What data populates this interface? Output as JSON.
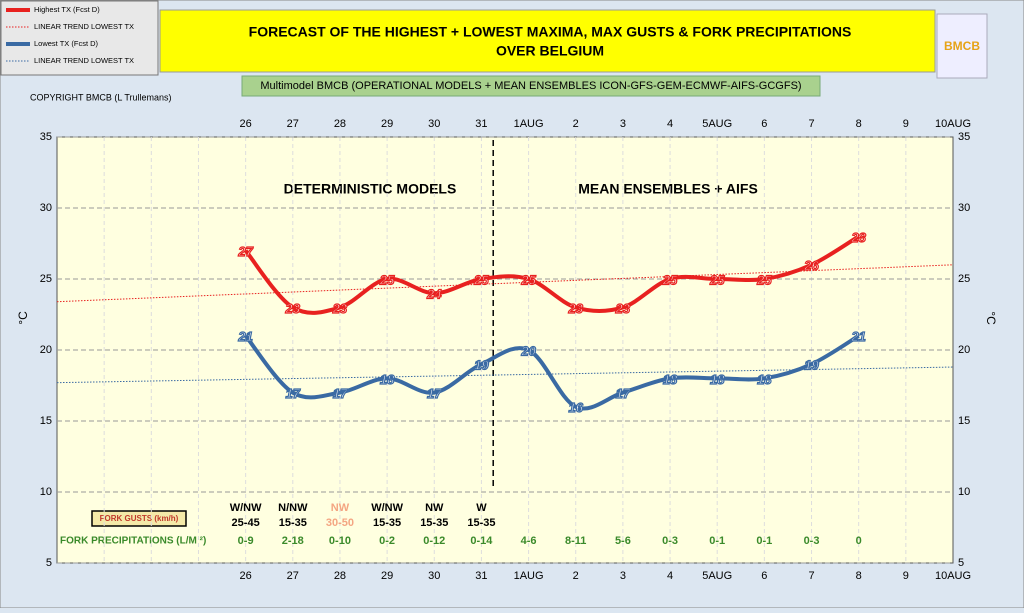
{
  "chart_data": {
    "type": "line",
    "title": "FORECAST OF THE HIGHEST + LOWEST MAXIMA, MAX GUSTS & FORK PRECIPITATIONS",
    "title2": "OVER BELGIUM",
    "subtitle": "Multimodel BMCB (OPERATIONAL MODELS + MEAN ENSEMBLES  ICON-GFS-GEM-ECMWF-AIFS-GCGFS)",
    "copyright": "COPYRIGHT BMCB (L Trullemans)",
    "logo": "BMCB",
    "y_label": "°C",
    "annotations": [
      "DETERMINISTIC MODELS",
      "MEAN ENSEMBLES + AIFS"
    ],
    "categories": [
      null,
      null,
      null,
      null,
      "26",
      "27",
      "28",
      "29",
      "30",
      "31",
      "1AUG",
      "2",
      "3",
      "4",
      "5AUG",
      "6",
      "7",
      "8",
      "9",
      "10AUG"
    ],
    "series": [
      {
        "name": "Highest TX (Fcst D)",
        "color": "#e8211f",
        "values": [
          null,
          null,
          null,
          null,
          27,
          23,
          23,
          25,
          24,
          25,
          25,
          23,
          23,
          25,
          25,
          25,
          26,
          28,
          null,
          null
        ]
      },
      {
        "name": "Lowest TX (Fcst D)",
        "color": "#3a6aa3",
        "values": [
          null,
          null,
          null,
          null,
          21,
          17,
          17,
          18,
          17,
          19,
          20,
          16,
          17,
          18,
          18,
          18,
          19,
          21,
          null,
          null
        ]
      }
    ],
    "trendlines": [
      {
        "name": "LINEAR TREND LOWEST  TX",
        "color": "#e8211f",
        "start": 23.4,
        "end": 26
      },
      {
        "name": "LINEAR TREND LOWEST TX",
        "color": "#3a6aa3",
        "start": 17.7,
        "end": 18.8
      }
    ],
    "ylim": [
      5,
      35
    ],
    "yticks": [
      5,
      10,
      15,
      20,
      25,
      30,
      35
    ],
    "grid": true,
    "gusts_label": "FORK GUSTS (km/h)",
    "gusts": [
      {
        "direction": "W/NW",
        "speed": "25-45",
        "color": "#000000"
      },
      {
        "direction": "N/NW",
        "speed": "15-35",
        "color": "#000000"
      },
      {
        "direction": "NW",
        "speed": "30-50",
        "color": "#f4a582"
      },
      {
        "direction": "W/NW",
        "speed": "15-35",
        "color": "#000000"
      },
      {
        "direction": "NW",
        "speed": "15-35",
        "color": "#000000"
      },
      {
        "direction": "W",
        "speed": "15-35",
        "color": "#000000"
      }
    ],
    "precip_label": "FORK PRECIPITATIONS (L/M ²)",
    "precip_color": "#3a8a2a",
    "precip": [
      "0-9",
      "2-18",
      "0-10",
      "0-2",
      "0-12",
      "0-14",
      "4-6",
      "8-11",
      "5-6",
      "0-3",
      "0-1",
      "0-1",
      "0-3",
      "0"
    ]
  }
}
